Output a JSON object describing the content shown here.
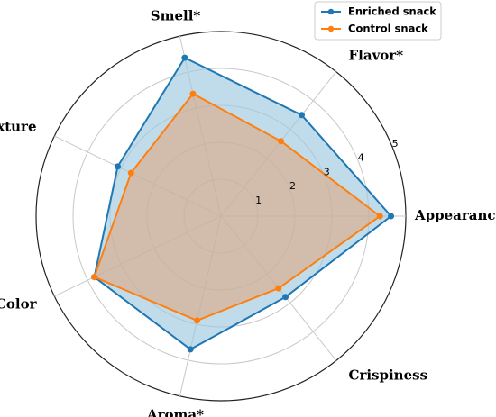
{
  "chart_data": {
    "type": "radar",
    "axes": [
      "Appearance",
      "Flavor*",
      "Smell*",
      "Texture",
      "Color",
      "Aroma*",
      "Crispiness"
    ],
    "rlim": [
      0,
      5
    ],
    "rticks": [
      1,
      2,
      3,
      4,
      5
    ],
    "grid": true,
    "legend_position": "top-right",
    "series": [
      {
        "name": "Enriched snack",
        "values": [
          4.6,
          3.5,
          4.4,
          3.1,
          3.8,
          3.7,
          2.8
        ],
        "color": "#1f77b4",
        "fill": "#9ecae1"
      },
      {
        "name": "Control snack",
        "values": [
          4.3,
          2.6,
          3.4,
          2.7,
          3.8,
          2.9,
          2.5
        ],
        "color": "#ff7f0e",
        "fill": "#e0a47a"
      }
    ]
  }
}
